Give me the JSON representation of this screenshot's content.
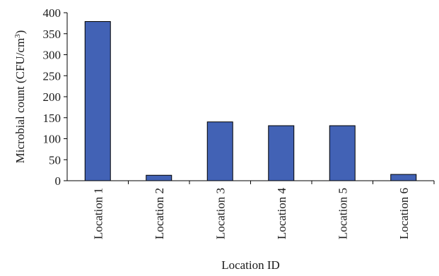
{
  "chart_data": {
    "type": "bar",
    "categories": [
      "Location 1",
      "Location 2",
      "Location 3",
      "Location 4",
      "Location 5",
      "Location 6"
    ],
    "values": [
      379,
      13,
      140,
      131,
      131,
      15
    ],
    "xlabel": "Location ID",
    "ylabel_prefix": "Microbial count (CFU/cm",
    "ylabel_sup": "3",
    "ylabel_suffix": ")",
    "ylim": [
      0,
      400
    ],
    "yticks": [
      "0",
      "50",
      "100",
      "150",
      "200",
      "250",
      "300",
      "350",
      "400"
    ],
    "grid": false,
    "legend": "none",
    "bar_color": "#4262b5"
  }
}
